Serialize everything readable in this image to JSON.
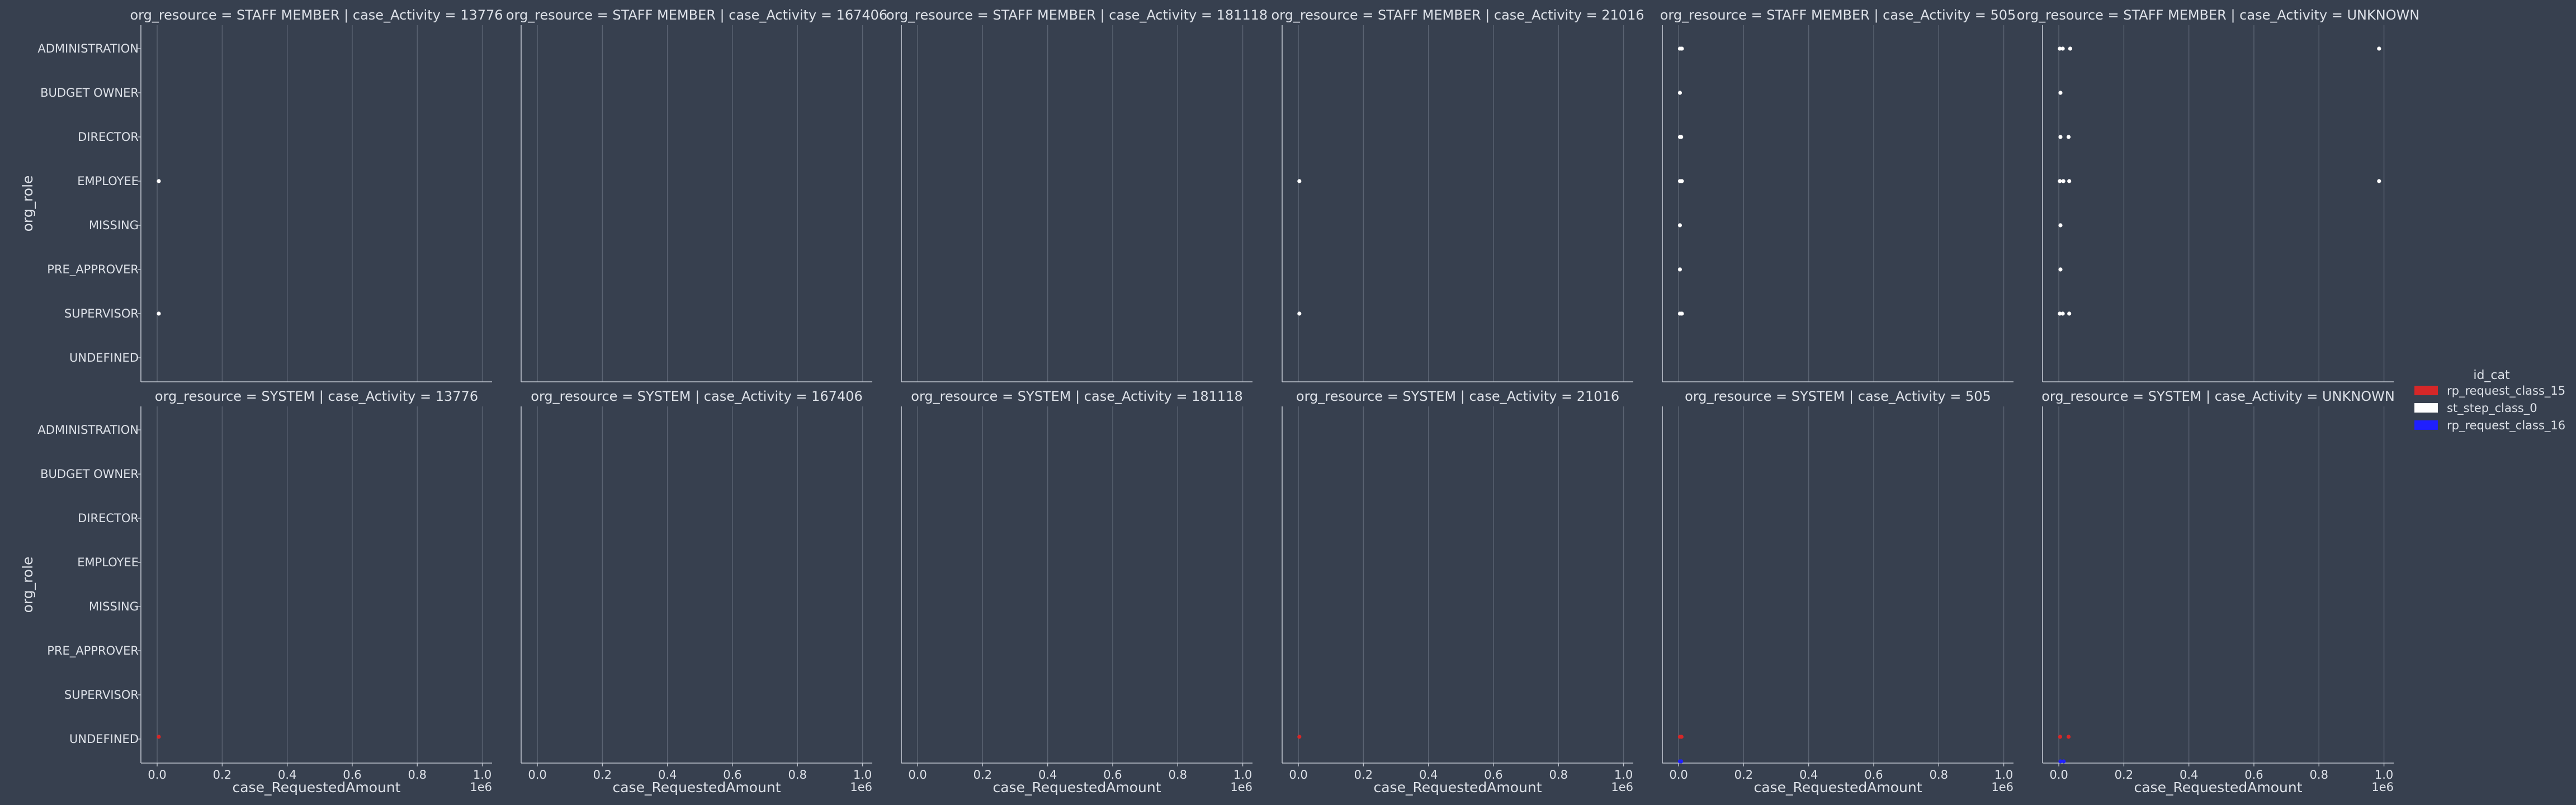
{
  "chart_data": {
    "type": "strip",
    "grid": true,
    "legend_position": "right",
    "x_axis": {
      "label": "case_RequestedAmount",
      "offset_label": "1e6",
      "range": [
        -0.05,
        1.03
      ],
      "ticks": [
        0.0,
        0.2,
        0.4,
        0.6,
        0.8,
        1.0
      ],
      "tick_labels": [
        "0.0",
        "0.2",
        "0.4",
        "0.6",
        "0.8",
        "1.0"
      ]
    },
    "y_axis": {
      "label": "org_role",
      "categories": [
        "ADMINISTRATION",
        "BUDGET OWNER",
        "DIRECTOR",
        "EMPLOYEE",
        "MISSING",
        "PRE_APPROVER",
        "SUPERVISOR",
        "UNDEFINED"
      ]
    },
    "legend": {
      "title": "id_cat",
      "entries": [
        {
          "label": "rp_request_class_15",
          "color": "#d62728"
        },
        {
          "label": "st_step_class_0",
          "color": "#ffffff"
        },
        {
          "label": "rp_request_class_16",
          "color": "#1f1fff"
        }
      ]
    },
    "panels": [
      {
        "title": "org_resource = STAFF MEMBER | case_Activity = 13776",
        "points": [
          {
            "cat": "EMPLOYEE",
            "x": 0.005,
            "series": "st_step_class_0"
          },
          {
            "cat": "SUPERVISOR",
            "x": 0.005,
            "series": "st_step_class_0"
          }
        ]
      },
      {
        "title": "org_resource = STAFF MEMBER | case_Activity = 167406",
        "points": []
      },
      {
        "title": "org_resource = STAFF MEMBER | case_Activity = 181118",
        "points": []
      },
      {
        "title": "org_resource = STAFF MEMBER | case_Activity = 21016",
        "points": [
          {
            "cat": "EMPLOYEE",
            "x": 0.003,
            "series": "st_step_class_0"
          },
          {
            "cat": "SUPERVISOR",
            "x": 0.003,
            "series": "st_step_class_0"
          }
        ]
      },
      {
        "title": "org_resource = STAFF MEMBER | case_Activity = 505",
        "points": [
          {
            "cat": "ADMINISTRATION",
            "x": 0.004,
            "series": "st_step_class_0"
          },
          {
            "cat": "ADMINISTRATION",
            "x": 0.01,
            "series": "st_step_class_0"
          },
          {
            "cat": "BUDGET OWNER",
            "x": 0.004,
            "series": "st_step_class_0"
          },
          {
            "cat": "DIRECTOR",
            "x": 0.004,
            "series": "st_step_class_0"
          },
          {
            "cat": "DIRECTOR",
            "x": 0.008,
            "series": "st_step_class_0"
          },
          {
            "cat": "EMPLOYEE",
            "x": 0.004,
            "series": "st_step_class_0"
          },
          {
            "cat": "EMPLOYEE",
            "x": 0.01,
            "series": "st_step_class_0"
          },
          {
            "cat": "MISSING",
            "x": 0.004,
            "series": "st_step_class_0"
          },
          {
            "cat": "PRE_APPROVER",
            "x": 0.004,
            "series": "st_step_class_0"
          },
          {
            "cat": "SUPERVISOR",
            "x": 0.004,
            "series": "st_step_class_0"
          },
          {
            "cat": "SUPERVISOR",
            "x": 0.01,
            "series": "st_step_class_0"
          }
        ]
      },
      {
        "title": "org_resource = STAFF MEMBER | case_Activity = UNKNOWN",
        "points": [
          {
            "cat": "ADMINISTRATION",
            "x": 0.003,
            "series": "st_step_class_0"
          },
          {
            "cat": "ADMINISTRATION",
            "x": 0.012,
            "series": "st_step_class_0"
          },
          {
            "cat": "ADMINISTRATION",
            "x": 0.035,
            "series": "st_step_class_0"
          },
          {
            "cat": "ADMINISTRATION",
            "x": 0.985,
            "series": "st_step_class_0"
          },
          {
            "cat": "BUDGET OWNER",
            "x": 0.005,
            "series": "st_step_class_0"
          },
          {
            "cat": "DIRECTOR",
            "x": 0.005,
            "series": "st_step_class_0"
          },
          {
            "cat": "DIRECTOR",
            "x": 0.03,
            "series": "st_step_class_0"
          },
          {
            "cat": "EMPLOYEE",
            "x": 0.003,
            "series": "st_step_class_0"
          },
          {
            "cat": "EMPLOYEE",
            "x": 0.014,
            "series": "st_step_class_0"
          },
          {
            "cat": "EMPLOYEE",
            "x": 0.032,
            "series": "st_step_class_0"
          },
          {
            "cat": "EMPLOYEE",
            "x": 0.985,
            "series": "st_step_class_0"
          },
          {
            "cat": "MISSING",
            "x": 0.005,
            "series": "st_step_class_0"
          },
          {
            "cat": "PRE_APPROVER",
            "x": 0.005,
            "series": "st_step_class_0"
          },
          {
            "cat": "SUPERVISOR",
            "x": 0.003,
            "series": "st_step_class_0"
          },
          {
            "cat": "SUPERVISOR",
            "x": 0.012,
            "series": "st_step_class_0"
          },
          {
            "cat": "SUPERVISOR",
            "x": 0.032,
            "series": "st_step_class_0"
          }
        ]
      },
      {
        "title": "org_resource = SYSTEM | case_Activity = 13776",
        "points": [
          {
            "cat": "UNDEFINED",
            "x": 0.005,
            "series": "rp_request_class_15"
          }
        ]
      },
      {
        "title": "org_resource = SYSTEM | case_Activity = 167406",
        "points": []
      },
      {
        "title": "org_resource = SYSTEM | case_Activity = 181118",
        "points": []
      },
      {
        "title": "org_resource = SYSTEM | case_Activity = 21016",
        "points": [
          {
            "cat": "UNDEFINED",
            "x": 0.003,
            "series": "rp_request_class_15"
          }
        ]
      },
      {
        "title": "org_resource = SYSTEM | case_Activity = 505",
        "points": [
          {
            "cat": "UNDEFINED",
            "x": 0.004,
            "series": "rp_request_class_15"
          },
          {
            "cat": "UNDEFINED",
            "x": 0.009,
            "series": "rp_request_class_15"
          },
          {
            "cat": "UNDEFINED",
            "x": 0.004,
            "series": "rp_request_class_16"
          },
          {
            "cat": "UNDEFINED",
            "x": 0.008,
            "series": "rp_request_class_16"
          }
        ]
      },
      {
        "title": "org_resource = SYSTEM | case_Activity = UNKNOWN",
        "points": [
          {
            "cat": "UNDEFINED",
            "x": 0.004,
            "series": "rp_request_class_15"
          },
          {
            "cat": "UNDEFINED",
            "x": 0.03,
            "series": "rp_request_class_15"
          },
          {
            "cat": "UNDEFINED",
            "x": 0.005,
            "series": "rp_request_class_16"
          },
          {
            "cat": "UNDEFINED",
            "x": 0.015,
            "series": "rp_request_class_16"
          }
        ]
      }
    ]
  }
}
